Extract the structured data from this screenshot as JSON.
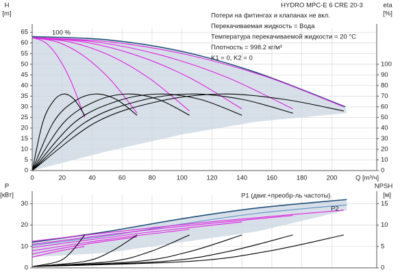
{
  "chart_data": [
    {
      "type": "line",
      "title": "HYDRO MPC-E 6 CRE 20-3",
      "notes": [
        "Потери на фитингах и клапанах не вкл.",
        "Перекачиваемая жидкость = Вода",
        "Температура перекачиваемой жидкости = 20 °C",
        "Плотность = 998.2 кг/м³",
        "K1 = 0, K2 = 0"
      ],
      "annotations": [
        "100 %"
      ],
      "ylabel": "H",
      "yunit": "[m]",
      "y2label": "eta",
      "y2unit": "[%]",
      "xlabel": "Q [m³/ч]",
      "xlim": [
        0,
        230
      ],
      "xticks": [
        0,
        20,
        40,
        60,
        80,
        100,
        120,
        140,
        160,
        180,
        200
      ],
      "ylim": [
        0,
        67
      ],
      "yticks": [
        0,
        5,
        10,
        15,
        20,
        25,
        30,
        35,
        40,
        45,
        50,
        55,
        60,
        65
      ],
      "y2lim": [
        0,
        134
      ],
      "y2ticks": [
        0,
        10,
        20,
        30,
        40,
        50,
        60,
        70,
        80,
        90,
        100
      ],
      "grid": true,
      "series": [
        {
          "style": "area",
          "color": "#c9d5e1",
          "x": [
            0,
            50,
            100,
            150,
            209,
            210,
            150,
            100,
            50,
            0
          ],
          "values": [
            63,
            61.5,
            56,
            46,
            30,
            27,
            23,
            17,
            9,
            0
          ]
        },
        {
          "color": "#1f4e79",
          "x": [
            0,
            50,
            100,
            150,
            209
          ],
          "values": [
            63,
            61.5,
            56,
            46,
            30
          ]
        },
        {
          "color": "#e020e0",
          "x": [
            0,
            8.75,
            17.5,
            26.25,
            35
          ],
          "values": [
            62.5,
            60.2,
            53.1,
            41.4,
            25
          ]
        },
        {
          "color": "#e020e0",
          "x": [
            0,
            17.5,
            35,
            52.5,
            70
          ],
          "values": [
            62.5,
            60.3,
            53.6,
            42.5,
            27
          ]
        },
        {
          "color": "#e020e0",
          "x": [
            0,
            26.25,
            52.5,
            78.75,
            105
          ],
          "values": [
            62.5,
            60.3,
            53.9,
            43.1,
            28
          ]
        },
        {
          "color": "#e020e0",
          "x": [
            0,
            35,
            70,
            105,
            140
          ],
          "values": [
            62.5,
            60.4,
            54.1,
            43.7,
            29
          ]
        },
        {
          "color": "#e020e0",
          "x": [
            0,
            43.5,
            87,
            130.5,
            174
          ],
          "values": [
            62.5,
            60.4,
            54.1,
            43.7,
            29
          ]
        },
        {
          "color": "#e020e0",
          "x": [
            0,
            52,
            104,
            156,
            208
          ],
          "values": [
            62.5,
            60.5,
            54.4,
            44.2,
            30
          ]
        },
        {
          "color": "#000000",
          "axis": "y2",
          "x": [
            0,
            7,
            14,
            21,
            28,
            35
          ],
          "values": [
            0,
            45,
            65,
            72,
            67,
            52
          ]
        },
        {
          "color": "#000000",
          "axis": "y2",
          "x": [
            0,
            14,
            28,
            42,
            56,
            70
          ],
          "values": [
            0,
            45,
            65,
            72,
            67,
            52
          ]
        },
        {
          "color": "#000000",
          "axis": "y2",
          "x": [
            0,
            21,
            42,
            63,
            84,
            105
          ],
          "values": [
            0,
            45,
            65,
            72,
            67,
            52
          ]
        },
        {
          "color": "#000000",
          "axis": "y2",
          "x": [
            0,
            28,
            56,
            84,
            112,
            140
          ],
          "values": [
            0,
            45,
            65,
            72,
            67,
            52
          ]
        },
        {
          "color": "#000000",
          "axis": "y2",
          "x": [
            0,
            35,
            70,
            105,
            140,
            174
          ],
          "values": [
            0,
            45,
            65,
            72,
            67,
            54
          ]
        },
        {
          "color": "#000000",
          "axis": "y2",
          "x": [
            0,
            42,
            84,
            126,
            168,
            208
          ],
          "values": [
            0,
            45,
            65,
            72,
            67,
            56
          ]
        }
      ]
    },
    {
      "type": "line",
      "annotations": [
        "P1 (двиг.+преобр-ль частоты)",
        "P2"
      ],
      "ylabel": "P",
      "yunit": "[кВт]",
      "y2label": "NPSH",
      "y2unit": "[м]",
      "xlim": [
        0,
        230
      ],
      "xticks": [
        0,
        20,
        40,
        60,
        80,
        100,
        120,
        140,
        160,
        180,
        200
      ],
      "ylim": [
        0,
        34
      ],
      "yticks": [
        0,
        10,
        20,
        30
      ],
      "y2lim": [
        0,
        17
      ],
      "y2ticks": [
        0,
        5,
        10,
        15
      ],
      "grid": true,
      "series": [
        {
          "style": "area",
          "color": "#c9d5e1",
          "x": [
            0,
            50,
            100,
            150,
            210,
            210,
            150,
            100,
            50,
            0
          ],
          "values": [
            12,
            17,
            23,
            28,
            32,
            27,
            17,
            12,
            7,
            5
          ]
        },
        {
          "color": "#1f4e79",
          "x": [
            0,
            50,
            100,
            150,
            210
          ],
          "values": [
            12,
            17,
            23,
            28,
            32
          ]
        },
        {
          "color": "#5b8fc7",
          "x": [
            0,
            50,
            100,
            150,
            210
          ],
          "values": [
            10.5,
            15,
            20.5,
            25.5,
            29.5
          ]
        },
        {
          "color": "#e020e0",
          "x": [
            0,
            17.5,
            35
          ],
          "values": [
            5,
            7.8,
            10
          ]
        },
        {
          "color": "#e020e0",
          "x": [
            0,
            35,
            70
          ],
          "values": [
            6.5,
            11,
            14.5
          ]
        },
        {
          "color": "#e020e0",
          "x": [
            0,
            52.5,
            105
          ],
          "values": [
            8,
            13.5,
            18
          ]
        },
        {
          "color": "#e020e0",
          "x": [
            0,
            70,
            140
          ],
          "values": [
            9.5,
            16,
            21.5
          ]
        },
        {
          "color": "#e020e0",
          "x": [
            0,
            87,
            174
          ],
          "values": [
            11,
            18.5,
            24.5
          ]
        },
        {
          "color": "#e020e0",
          "x": [
            0,
            104,
            208
          ],
          "values": [
            12.5,
            20.5,
            27
          ]
        },
        {
          "color": "#000000",
          "axis": "y2",
          "x": [
            0,
            17.5,
            26.25,
            35
          ],
          "values": [
            0.3,
            1.5,
            3.8,
            7.7
          ]
        },
        {
          "color": "#000000",
          "axis": "y2",
          "x": [
            0,
            35,
            52.5,
            70
          ],
          "values": [
            0.3,
            1.5,
            3.8,
            7.7
          ]
        },
        {
          "color": "#000000",
          "axis": "y2",
          "x": [
            0,
            52.5,
            78.75,
            105
          ],
          "values": [
            0.3,
            1.5,
            3.8,
            7.7
          ]
        },
        {
          "color": "#000000",
          "axis": "y2",
          "x": [
            0,
            70,
            105,
            140
          ],
          "values": [
            0.3,
            1.5,
            3.8,
            7.7
          ]
        },
        {
          "color": "#000000",
          "axis": "y2",
          "x": [
            0,
            87,
            130.5,
            174
          ],
          "values": [
            0.3,
            1.5,
            3.8,
            7.7
          ]
        },
        {
          "color": "#000000",
          "axis": "y2",
          "x": [
            0,
            104,
            156,
            208
          ],
          "values": [
            0.3,
            1.5,
            3.8,
            7.7
          ]
        }
      ]
    }
  ]
}
